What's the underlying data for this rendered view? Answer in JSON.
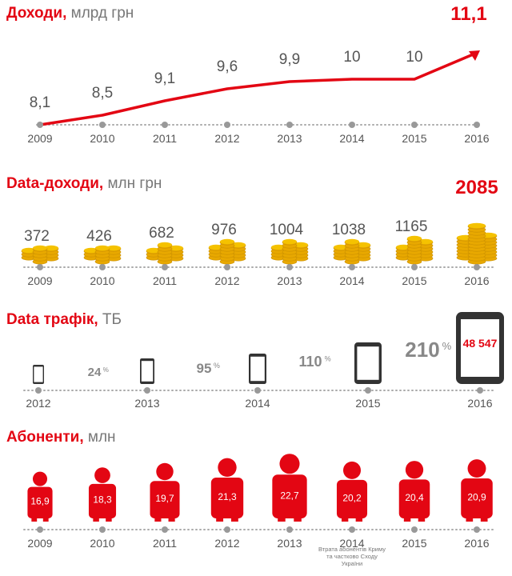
{
  "sections": {
    "revenue": {
      "title": "Доходи",
      "unit": "млрд грн"
    },
    "data_revenue": {
      "title": "Data-доходи",
      "unit": "млн грн"
    },
    "traffic": {
      "title": "Data трафік",
      "unit": "ТБ"
    },
    "subscribers": {
      "title": "Абоненти",
      "unit": "млн"
    }
  },
  "subscribers_note": "Втрата абонентів Криму та частково Сходу України",
  "colors": {
    "accent": "#e30613",
    "gold": "#f5c200",
    "gray": "#888888"
  },
  "chart_data": [
    {
      "type": "line",
      "title": "Доходи, млрд грн",
      "categories": [
        "2009",
        "2010",
        "2011",
        "2012",
        "2013",
        "2014",
        "2015",
        "2016"
      ],
      "values": [
        8.1,
        8.5,
        9.1,
        9.6,
        9.9,
        10,
        10,
        11.1
      ],
      "labels": [
        "8,1",
        "8,5",
        "9,1",
        "9,6",
        "9,9",
        "10",
        "10",
        "11,1"
      ]
    },
    {
      "type": "bar",
      "title": "Data-доходи, млн грн",
      "categories": [
        "2009",
        "2010",
        "2011",
        "2012",
        "2013",
        "2014",
        "2015",
        "2016"
      ],
      "values": [
        372,
        426,
        682,
        976,
        1004,
        1038,
        1165,
        2085
      ],
      "labels": [
        "372",
        "426",
        "682",
        "976",
        "1004",
        "1038",
        "1165",
        "2085"
      ]
    },
    {
      "type": "bar",
      "title": "Data трафік, ТБ",
      "categories": [
        "2012",
        "2013",
        "2014",
        "2015",
        "2016"
      ],
      "growth_labels": [
        "24",
        "95",
        "110",
        "210"
      ],
      "growth_unit": "%",
      "highlight_value": "48 547"
    },
    {
      "type": "bar",
      "title": "Абоненти, млн",
      "categories": [
        "2009",
        "2010",
        "2011",
        "2012",
        "2013",
        "2014",
        "2015",
        "2016"
      ],
      "values": [
        16.9,
        18.3,
        19.7,
        21.3,
        22.7,
        20.2,
        20.4,
        20.9
      ],
      "labels": [
        "16,9",
        "18,3",
        "19,7",
        "21,3",
        "22,7",
        "20,2",
        "20,4",
        "20,9"
      ]
    }
  ]
}
